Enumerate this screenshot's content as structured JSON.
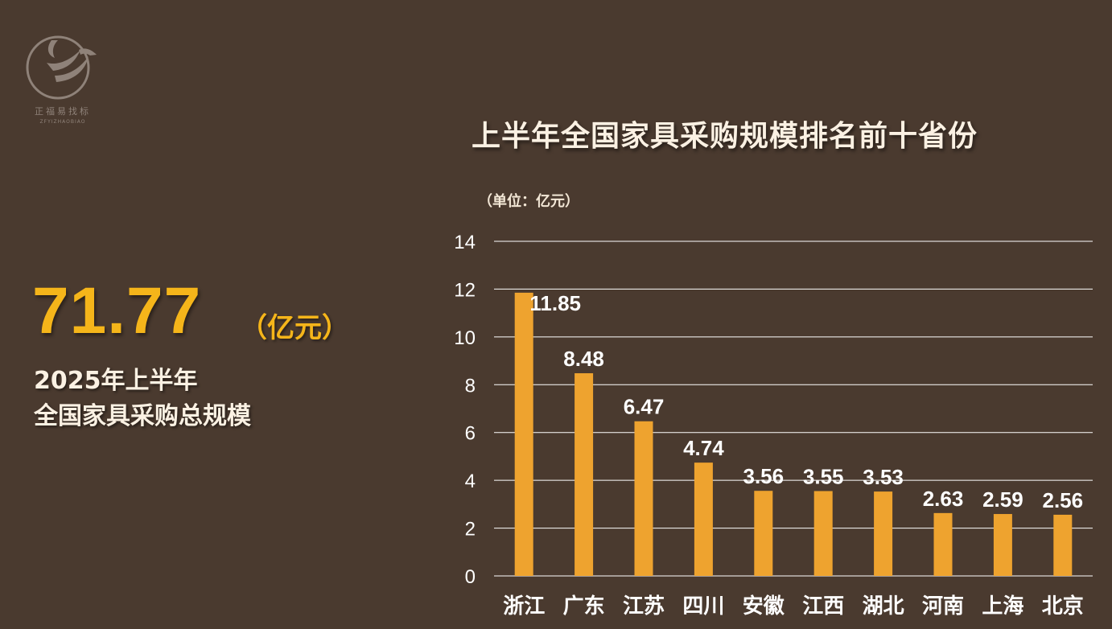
{
  "logo": {
    "text": "正福易找标",
    "subtext": "ZFYIZHAOBIAO"
  },
  "headline": {
    "value": "71.77",
    "unit": "（亿元）",
    "line1": "2025年上半年",
    "line2": "全国家具采购总规模"
  },
  "colors": {
    "background": "#4a3a2f",
    "bar": "#eea32f",
    "accent": "#f5b51a",
    "grid": "#ffffff"
  },
  "chart_data": {
    "type": "bar",
    "title": "上半年全国家具采购规模排名前十省份",
    "unit_label": "（单位：亿元）",
    "categories": [
      "浙江",
      "广东",
      "江苏",
      "四川",
      "安徽",
      "江西",
      "湖北",
      "河南",
      "上海",
      "北京"
    ],
    "values": [
      11.85,
      8.48,
      6.47,
      4.74,
      3.56,
      3.55,
      3.53,
      2.63,
      2.59,
      2.56
    ],
    "value_labels": [
      "11.85",
      "8.48",
      "6.47",
      "4.74",
      "3.56",
      "3.55",
      "3.53",
      "2.63",
      "2.59",
      "2.56"
    ],
    "yticks": [
      "0",
      "2",
      "4",
      "6",
      "8",
      "10",
      "12",
      "14"
    ],
    "ylim": [
      0,
      14
    ],
    "grid": true
  }
}
